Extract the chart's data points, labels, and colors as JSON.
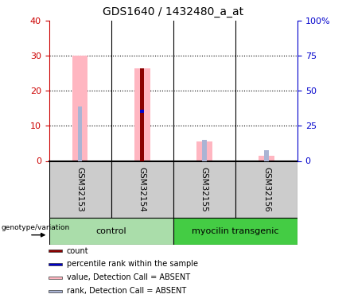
{
  "title": "GDS1640 / 1432480_a_at",
  "samples": [
    "GSM32153",
    "GSM32154",
    "GSM32155",
    "GSM32156"
  ],
  "value_absent": [
    30.0,
    26.5,
    5.5,
    1.5
  ],
  "rank_absent": [
    15.5,
    null,
    6.0,
    3.0
  ],
  "count": [
    null,
    26.5,
    null,
    null
  ],
  "percentile_rank": [
    null,
    13.8,
    null,
    null
  ],
  "ylim_left": [
    0,
    40
  ],
  "ylim_right": [
    0,
    100
  ],
  "yticks_left": [
    0,
    10,
    20,
    30,
    40
  ],
  "ytick_labels_left": [
    "0",
    "10",
    "20",
    "30",
    "40"
  ],
  "yticks_right": [
    0,
    25,
    50,
    75,
    100
  ],
  "ytick_labels_right": [
    "0",
    "25",
    "50",
    "75",
    "100%"
  ],
  "group_defs": [
    {
      "name": "control",
      "start": 0,
      "end": 2,
      "color": "#aaddaa"
    },
    {
      "name": "myocilin transgenic",
      "start": 2,
      "end": 4,
      "color": "#44cc44"
    }
  ],
  "colors": {
    "count": "#8b0000",
    "percentile_rank": "#0000cc",
    "value_absent": "#ffb6c1",
    "rank_absent": "#aab4d4",
    "axis_left": "#cc0000",
    "axis_right": "#0000cc",
    "sample_bg": "#cccccc",
    "grid_color": "#000000"
  },
  "legend": [
    {
      "label": "count",
      "color": "#8b0000"
    },
    {
      "label": "percentile rank within the sample",
      "color": "#0000cc"
    },
    {
      "label": "value, Detection Call = ABSENT",
      "color": "#ffb6c1"
    },
    {
      "label": "rank, Detection Call = ABSENT",
      "color": "#aab4d4"
    }
  ]
}
